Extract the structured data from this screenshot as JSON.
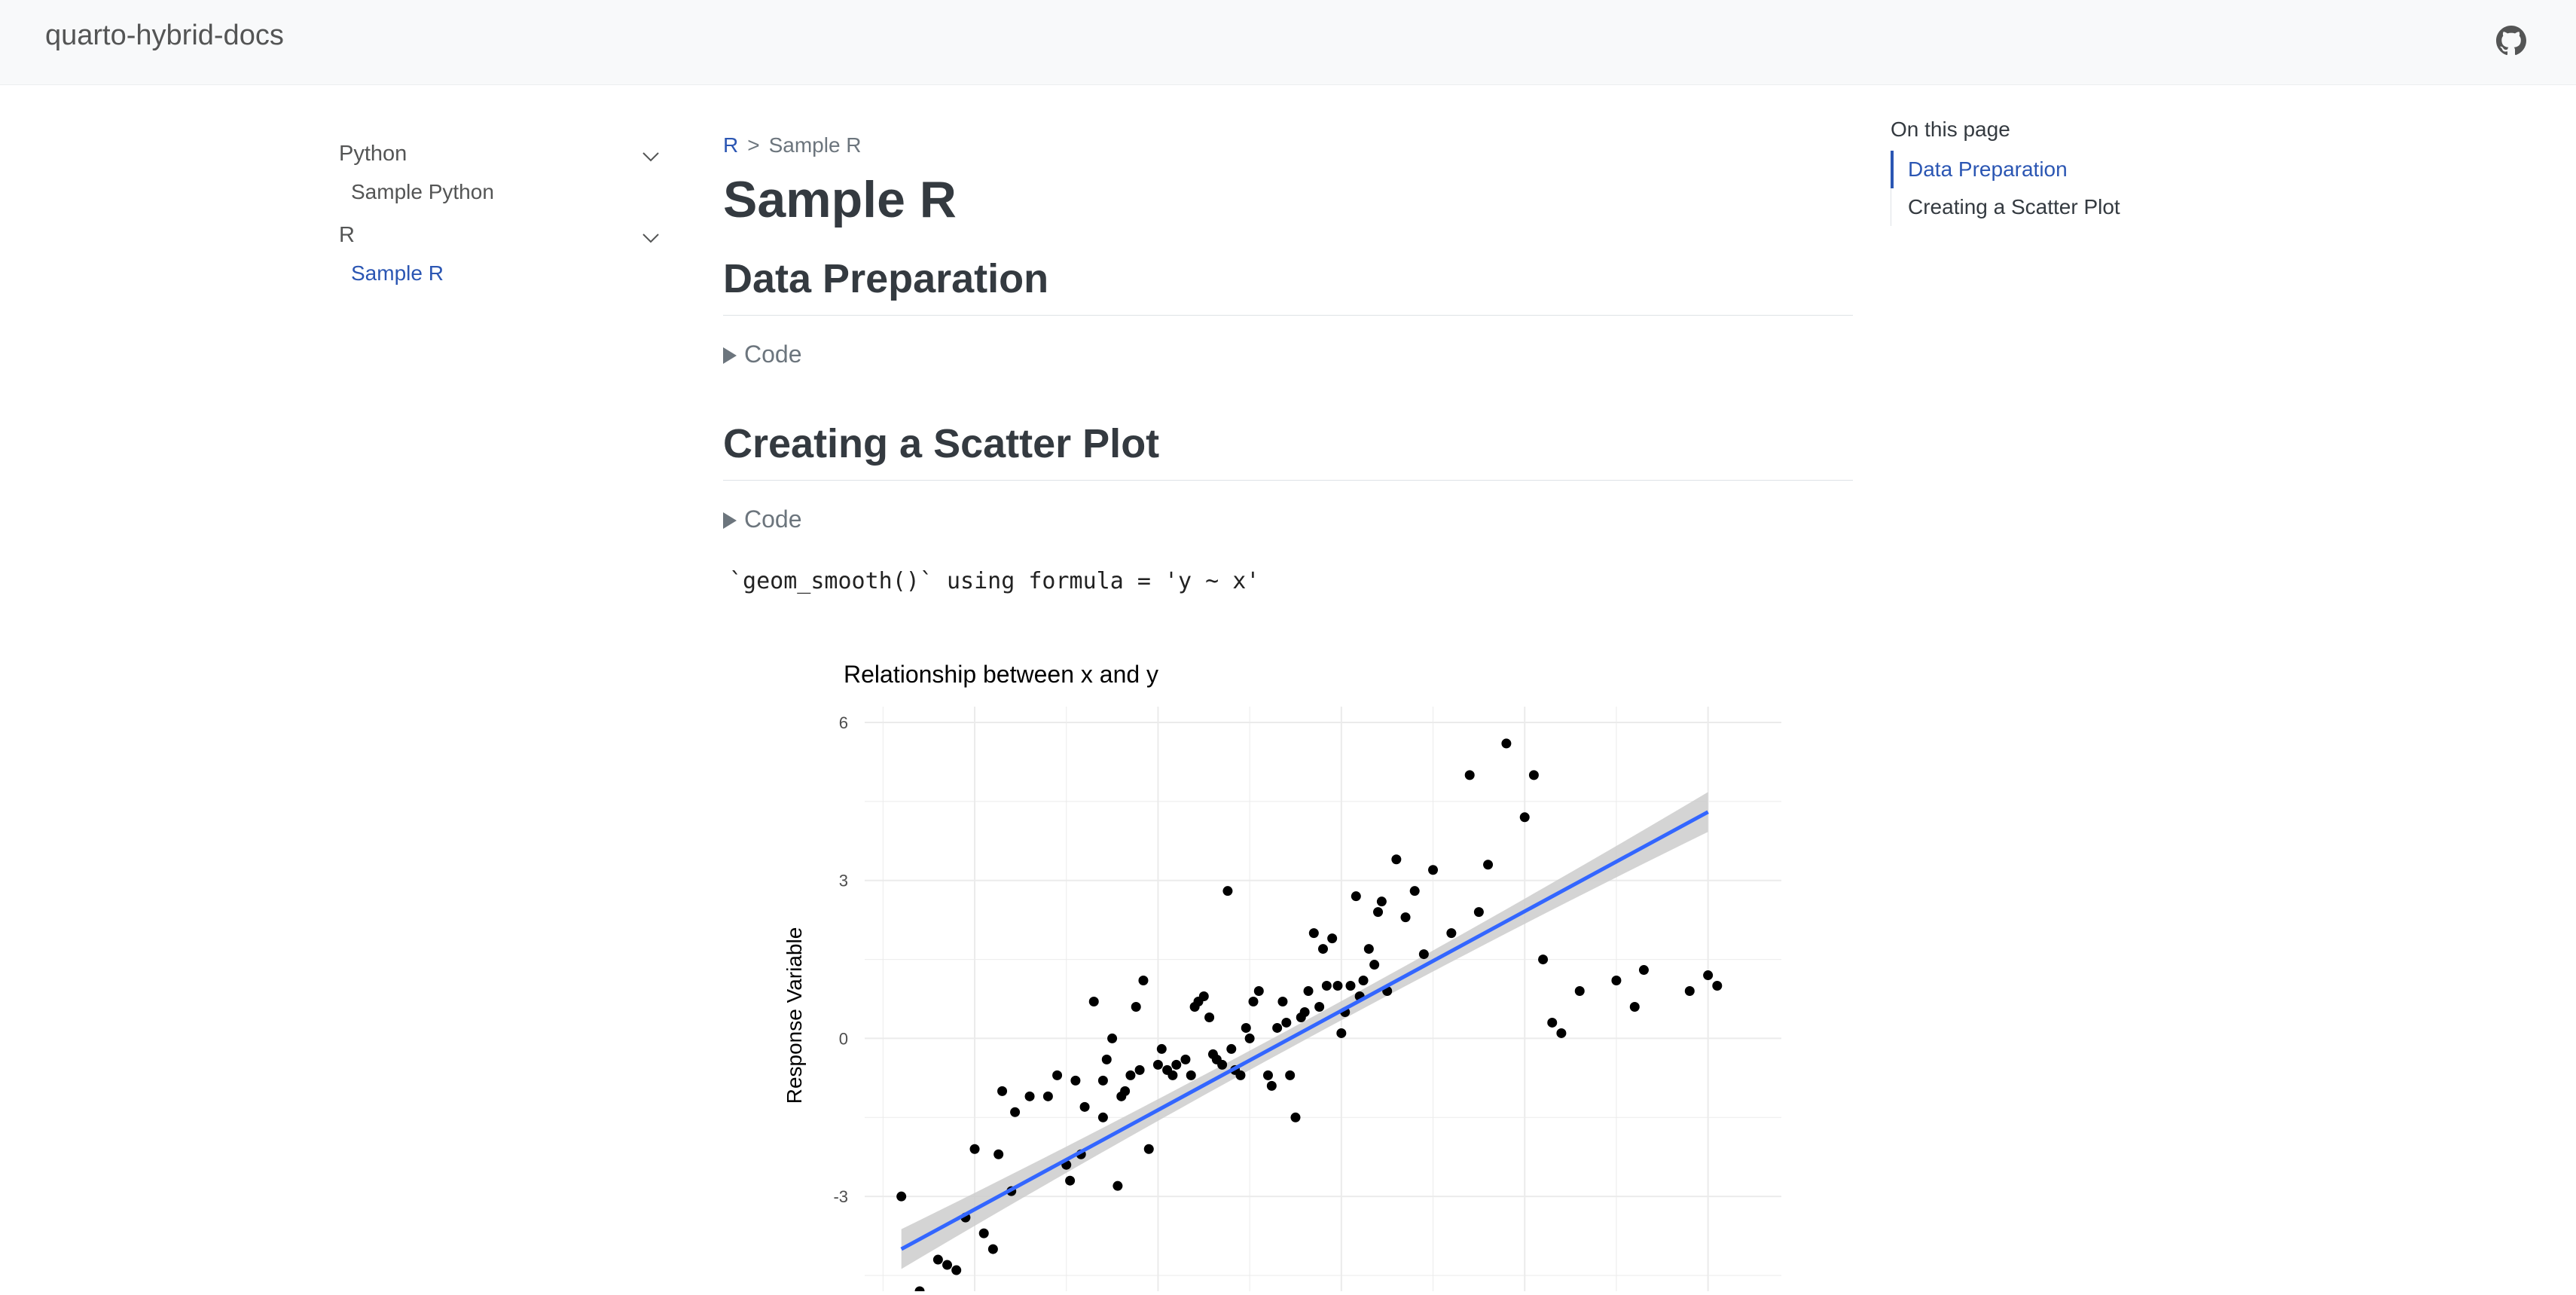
{
  "navbar": {
    "brand": "quarto-hybrid-docs",
    "github_icon": "github-icon"
  },
  "sidebar": {
    "sections": [
      {
        "label": "Python",
        "items": [
          {
            "label": "Sample Python",
            "active": false
          }
        ]
      },
      {
        "label": "R",
        "items": [
          {
            "label": "Sample R",
            "active": true
          }
        ]
      }
    ]
  },
  "breadcrumb": {
    "parent": "R",
    "separator": ">",
    "current": "Sample R"
  },
  "page": {
    "title": "Sample R",
    "section1_title": "Data Preparation",
    "section2_title": "Creating a Scatter Plot",
    "code_toggle_1": "Code",
    "code_toggle_2": "Code",
    "output_message": "`geom_smooth()` using formula = 'y ~ x'"
  },
  "toc": {
    "title": "On this page",
    "items": [
      "Data Preparation",
      "Creating a Scatter Plot"
    ],
    "active_index": 0
  },
  "colors": {
    "link": "#2b56b3",
    "smooth_line": "#3366ff",
    "ci_band": "#cccccc"
  },
  "chart_data": {
    "type": "scatter",
    "title": "Relationship between x and y",
    "ylabel": "Response Variable",
    "xlabel": "",
    "yticks": [
      6,
      3,
      0,
      -3
    ],
    "ylim": [
      -4.8,
      6.3
    ],
    "xlim": [
      -2.6,
      2.4
    ],
    "grid": true,
    "series": [
      {
        "type": "points",
        "x": [
          -2.4,
          -2.3,
          -2.2,
          -2.15,
          -2.1,
          -2.05,
          -2.0,
          -1.95,
          -1.9,
          -1.87,
          -1.85,
          -1.8,
          -1.78,
          -1.7,
          -1.6,
          -1.55,
          -1.5,
          -1.48,
          -1.45,
          -1.42,
          -1.4,
          -1.35,
          -1.3,
          -1.3,
          -1.28,
          -1.25,
          -1.22,
          -1.2,
          -1.18,
          -1.15,
          -1.12,
          -1.1,
          -1.08,
          -1.05,
          -1.0,
          -0.98,
          -0.95,
          -0.92,
          -0.9,
          -0.85,
          -0.82,
          -0.8,
          -0.78,
          -0.75,
          -0.72,
          -0.7,
          -0.68,
          -0.65,
          -0.62,
          -0.6,
          -0.58,
          -0.55,
          -0.52,
          -0.5,
          -0.48,
          -0.45,
          -0.4,
          -0.38,
          -0.35,
          -0.32,
          -0.3,
          -0.28,
          -0.25,
          -0.22,
          -0.2,
          -0.18,
          -0.15,
          -0.12,
          -0.1,
          -0.08,
          -0.05,
          -0.02,
          0.0,
          0.02,
          0.05,
          0.08,
          0.1,
          0.12,
          0.15,
          0.18,
          0.2,
          0.22,
          0.25,
          0.3,
          0.35,
          0.4,
          0.45,
          0.5,
          0.6,
          0.7,
          0.75,
          0.8,
          0.9,
          1.0,
          1.05,
          1.1,
          1.15,
          1.2,
          1.3,
          1.5,
          1.6,
          1.65,
          1.9,
          2.0,
          2.05
        ],
        "y": [
          -3.0,
          -4.8,
          -4.2,
          -4.3,
          -4.4,
          -3.4,
          -2.1,
          -3.7,
          -4.0,
          -2.2,
          -1.0,
          -2.9,
          -1.4,
          -1.1,
          -1.1,
          -0.7,
          -2.4,
          -2.7,
          -0.8,
          -2.2,
          -1.3,
          0.7,
          -1.5,
          -0.8,
          -0.4,
          0.0,
          -2.8,
          -1.1,
          -1.0,
          -0.7,
          0.6,
          -0.6,
          1.1,
          -2.1,
          -0.5,
          -0.2,
          -0.6,
          -0.7,
          -0.5,
          -0.4,
          -0.7,
          0.6,
          0.7,
          0.8,
          0.4,
          -0.3,
          -0.4,
          -0.5,
          2.8,
          -0.2,
          -0.6,
          -0.7,
          0.2,
          0.0,
          0.7,
          0.9,
          -0.7,
          -0.9,
          0.2,
          0.7,
          0.3,
          -0.7,
          -1.5,
          0.4,
          0.5,
          0.9,
          2.0,
          0.6,
          1.7,
          1.0,
          1.9,
          1.0,
          0.1,
          0.5,
          1.0,
          2.7,
          0.8,
          1.1,
          1.7,
          1.4,
          2.4,
          2.6,
          0.9,
          3.4,
          2.3,
          2.8,
          1.6,
          3.2,
          2.0,
          5.0,
          2.4,
          3.3,
          5.6,
          4.2,
          5.0,
          1.5,
          0.3,
          0.1,
          0.9,
          1.1,
          0.6,
          1.3,
          0.9,
          1.2,
          1.0
        ],
        "color": "#000000"
      },
      {
        "type": "smooth",
        "method": "lm",
        "x": [
          -2.4,
          2.0
        ],
        "y": [
          -4.0,
          4.3
        ]
      }
    ]
  }
}
